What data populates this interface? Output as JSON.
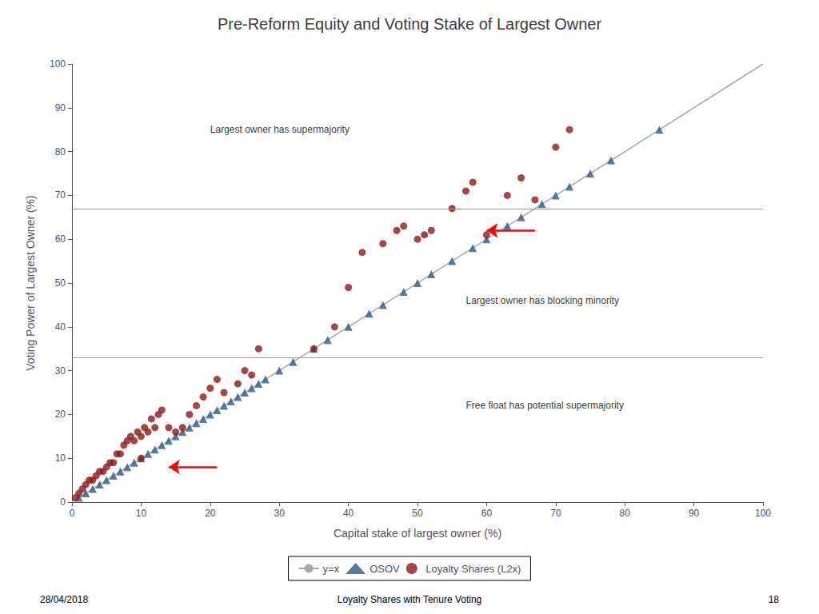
{
  "chart_data": {
    "type": "scatter",
    "title": "Pre-Reform Equity and Voting Stake of Largest Owner",
    "xlabel": "Capital stake of largest owner (%)",
    "ylabel": "Voting Power of Largest Owner (%)",
    "xlim": [
      0,
      100
    ],
    "ylim": [
      0,
      100
    ],
    "xticks": [
      0,
      10,
      20,
      30,
      40,
      50,
      60,
      70,
      80,
      90,
      100
    ],
    "yticks": [
      0,
      10,
      20,
      30,
      40,
      50,
      60,
      70,
      80,
      90,
      100
    ],
    "grid": false,
    "legend": "bottom",
    "series": [
      {
        "name": "y=x",
        "type": "line",
        "color": "#aaaaaa",
        "x": [
          0,
          100
        ],
        "values": [
          0,
          100
        ]
      },
      {
        "name": "OSOV",
        "type": "scatter",
        "marker": "triangle",
        "color": "#2d5986",
        "x": [
          1,
          2,
          3,
          4,
          5,
          6,
          7,
          8,
          9,
          10,
          11,
          12,
          13,
          14,
          15,
          16,
          17,
          18,
          19,
          20,
          21,
          22,
          23,
          24,
          25,
          26,
          27,
          28,
          30,
          32,
          35,
          37,
          40,
          43,
          45,
          48,
          50,
          52,
          55,
          58,
          60,
          63,
          65,
          68,
          70,
          72,
          75,
          78,
          85
        ],
        "values": [
          1,
          2,
          3,
          4,
          5,
          6,
          7,
          8,
          9,
          10,
          11,
          12,
          13,
          14,
          15,
          16,
          17,
          18,
          19,
          20,
          21,
          22,
          23,
          24,
          25,
          26,
          27,
          28,
          30,
          32,
          35,
          37,
          40,
          43,
          45,
          48,
          50,
          52,
          55,
          58,
          60,
          63,
          65,
          68,
          70,
          72,
          75,
          78,
          85
        ]
      },
      {
        "name": "Loyalty Shares (L2x)",
        "type": "scatter",
        "marker": "circle",
        "color": "#8b1a1a",
        "x": [
          0.5,
          1,
          1.5,
          2,
          2.5,
          3,
          3.5,
          4,
          4.5,
          5,
          5.5,
          6,
          6.5,
          7,
          7.5,
          8,
          8.5,
          9,
          9.5,
          10,
          10,
          10.5,
          11,
          11.5,
          12,
          12.5,
          13,
          14,
          15,
          16,
          17,
          18,
          19,
          20,
          21,
          22,
          24,
          25,
          26,
          27,
          35,
          38,
          40,
          42,
          45,
          47,
          48,
          50,
          51,
          52,
          55,
          57,
          58,
          60,
          63,
          65,
          67,
          70,
          72
        ],
        "values": [
          1,
          2,
          3,
          4,
          5,
          5,
          6,
          7,
          7,
          8,
          9,
          9,
          11,
          11,
          13,
          14,
          15,
          14,
          16,
          10,
          15,
          17,
          16,
          19,
          17,
          20,
          21,
          17,
          16,
          17,
          20,
          22,
          24,
          26,
          28,
          25,
          27,
          30,
          29,
          35,
          35,
          40,
          49,
          57,
          59,
          62,
          63,
          60,
          61,
          62,
          67,
          71,
          73,
          61,
          70,
          74,
          69,
          81,
          85
        ]
      }
    ],
    "hlines": {
      "values": [
        33,
        67
      ],
      "color": "#999999"
    },
    "annotations": [
      {
        "text": "Largest owner has supermajority",
        "x": 20,
        "y": 85
      },
      {
        "text": "Largest owner has blocking minority",
        "x": 57,
        "y": 46
      },
      {
        "text": "Free float has potential supermajority",
        "x": 57,
        "y": 22
      }
    ],
    "arrows": [
      {
        "from": [
          21,
          8
        ],
        "to": [
          14,
          8
        ],
        "color": "red"
      },
      {
        "from": [
          67,
          62
        ],
        "to": [
          60,
          62
        ],
        "color": "red"
      }
    ],
    "footer": [
      "28/04/2018",
      "Loyalty Shares with Tenure Voting",
      "18"
    ]
  }
}
